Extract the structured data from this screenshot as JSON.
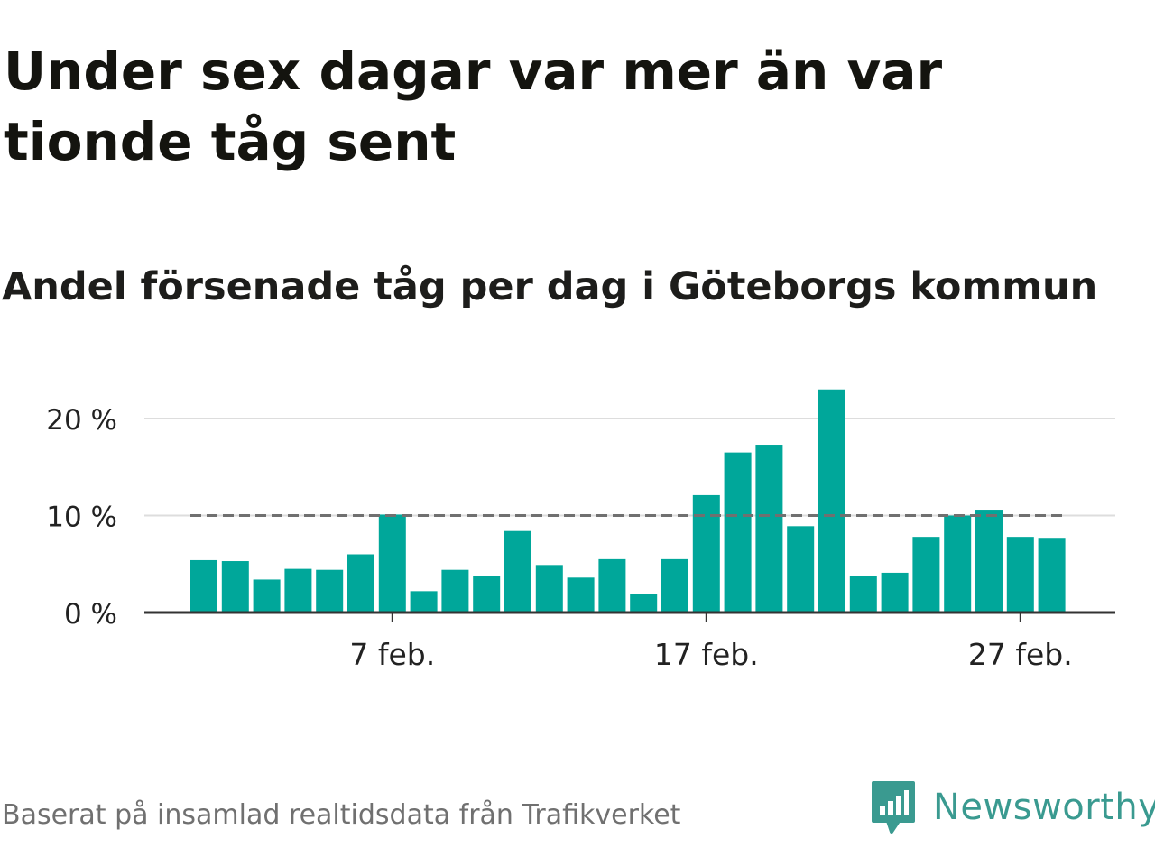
{
  "title": "Under sex dagar var mer än var tionde tåg sent",
  "subtitle": "Andel försenade tåg per dag i Göteborgs kommun",
  "source": "Baserat på insamlad realtidsdata från Trafikverket",
  "brand": "Newsworthy",
  "colors": {
    "bar": "#00a79a",
    "accent": "#3a9a90",
    "reference_line": "#707070",
    "grid": "#dddddd"
  },
  "chart_data": {
    "type": "bar",
    "categories": [
      "1 feb.",
      "2 feb.",
      "3 feb.",
      "4 feb.",
      "5 feb.",
      "6 feb.",
      "7 feb.",
      "8 feb.",
      "9 feb.",
      "10 feb.",
      "11 feb.",
      "12 feb.",
      "13 feb.",
      "14 feb.",
      "15 feb.",
      "16 feb.",
      "17 feb.",
      "18 feb.",
      "19 feb.",
      "20 feb.",
      "21 feb.",
      "22 feb.",
      "23 feb.",
      "24 feb.",
      "25 feb.",
      "26 feb.",
      "27 feb.",
      "28 feb."
    ],
    "values": [
      5.4,
      5.3,
      3.4,
      4.5,
      4.4,
      6.0,
      10.1,
      2.2,
      4.4,
      3.8,
      8.4,
      4.9,
      3.6,
      5.5,
      1.9,
      5.5,
      12.1,
      16.5,
      17.3,
      8.9,
      23.0,
      3.8,
      4.1,
      7.8,
      10.0,
      10.6,
      7.8,
      7.7
    ],
    "ylim": [
      0,
      23
    ],
    "yticks": [
      0,
      10,
      20
    ],
    "ytick_labels": [
      "0 %",
      "10 %",
      "20 %"
    ],
    "xticks": [
      "7 feb.",
      "17 feb.",
      "27 feb."
    ],
    "reference_line": 10,
    "grid": true
  }
}
